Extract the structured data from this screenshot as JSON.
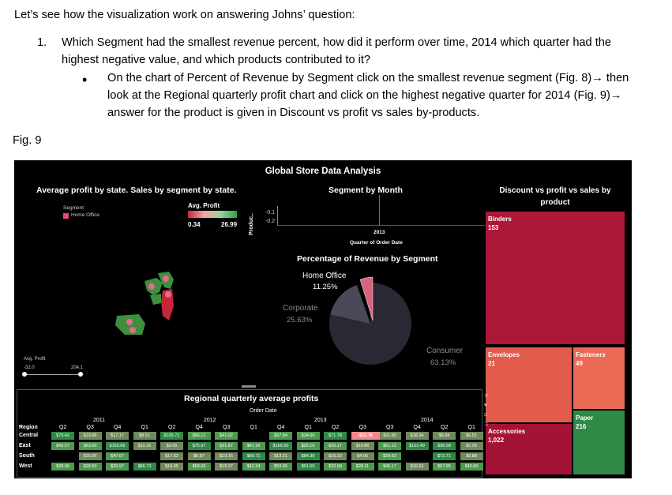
{
  "document": {
    "intro": "Let’s see how the visualization work on answering Johns’ question:",
    "question_number": "1.",
    "question": "Which Segment had the smallest revenue percent, how did it perform over time, 2014 which quarter had the highest negative value, and which products contributed to it?",
    "bullet": "On the chart of Percent of Revenue by Segment click on the smallest revenue segment (Fig. 8)→ then look at the Regional quarterly profit chart and click on the highest negative quarter for 2014 (Fig. 9)→ answer for the product is given in Discount vs profit vs sales by-products.",
    "figure_label": "Fig. 9"
  },
  "dashboard": {
    "title": "Global Store Data Analysis",
    "avg_profit_panel": {
      "title": "Average profit by state. Sales by segment by state.",
      "segment_legend_title": "Segment",
      "segment_legend_item": "Home Office",
      "avg_profit_legend_title": "Avg. Profit",
      "avg_profit_min": "0.34",
      "avg_profit_max": "26.99",
      "slider_label": "Avg. Profit",
      "slider_min": "-32.0",
      "slider_max": "204.1"
    },
    "segment_by_month": {
      "title": "Segment by Month",
      "y_axis_label": "Produc..",
      "y_ticks": [
        "-0.1",
        "-0.2"
      ],
      "x_year": "2013",
      "x_label": "Quarter of Order Date"
    },
    "pct_revenue": {
      "title": "Percentage of Revenue by Segment",
      "home_office_label": "Home Office",
      "home_office_value": "11.25%",
      "corporate_label": "Corporate",
      "corporate_value": "25.63%",
      "consumer_label": "Consumer",
      "consumer_value": "63.13%",
      "colors": {
        "home_office": "#d9627e",
        "corporate": "#4b4957",
        "consumer": "#2a2833"
      }
    },
    "treemap": {
      "title": "Discount vs profit vs sales by product",
      "tiles": [
        {
          "label": "Binders",
          "value": "153",
          "color": "#ad1838"
        },
        {
          "label": "Envelopes",
          "value": "21",
          "color": "#e35b4c"
        },
        {
          "label": "Fasteners",
          "value": "49",
          "color": "#ea6a55"
        },
        {
          "label": "Accessories",
          "value": "1,022",
          "color": "#a31335"
        },
        {
          "label": "Paper",
          "value": "216",
          "color": "#2f8a45"
        }
      ]
    },
    "regional": {
      "title": "Regional quarterly average profits",
      "subtitle": "Order Date",
      "region_header": "Region",
      "years": [
        "2011",
        "2012",
        "2013",
        "2014"
      ],
      "quarters": [
        "Q2",
        "Q3",
        "Q4",
        "Q1",
        "Q2",
        "Q4",
        "Q3",
        "Q1",
        "Q4",
        "Q1",
        "Q2",
        "Q3",
        "Q3",
        "Q4",
        "Q2",
        "Q1"
      ],
      "rows": [
        {
          "region": "Central",
          "cells": [
            "$79.42",
            "$19.96",
            "$17.17",
            "$8.51",
            "$105.72",
            "$56.12",
            "$41.02",
            "",
            "$57.84",
            "$34.60",
            "$71.78",
            "-$21.78",
            "$11.80",
            "$18.34",
            "$9.98",
            "$6.51"
          ]
        },
        {
          "region": "East",
          "cells": [
            "$42.57",
            "$53.00",
            "$150.66",
            "$11.16",
            "$3.65",
            "$75.97",
            "$31.87",
            "$41.16",
            "$165.50",
            "$25.16",
            "$26.17",
            "$19.86",
            "$51.12",
            "$152.49",
            "$98.58",
            "$2.05"
          ]
        },
        {
          "region": "South",
          "cells": [
            "",
            "$15.06",
            "$47.67",
            "",
            "$17.62",
            "$6.87",
            "$19.15",
            "$66.71",
            "$13.21",
            "$84.35",
            "$15.22",
            "$4.06",
            "$29.63",
            "",
            "$72.71",
            "$9.88"
          ]
        },
        {
          "region": "West",
          "cells": [
            "$38.06",
            "$28.50",
            "$25.97",
            "$86.73",
            "$19.95",
            "$58.06",
            "$19.27",
            "$42.34",
            "$59.09",
            "$91.50",
            "$32.08",
            "$28.11",
            "$45.17",
            "$16.62",
            "$57.95",
            "$40.90"
          ]
        }
      ],
      "highlight": "-$21.78"
    }
  }
}
